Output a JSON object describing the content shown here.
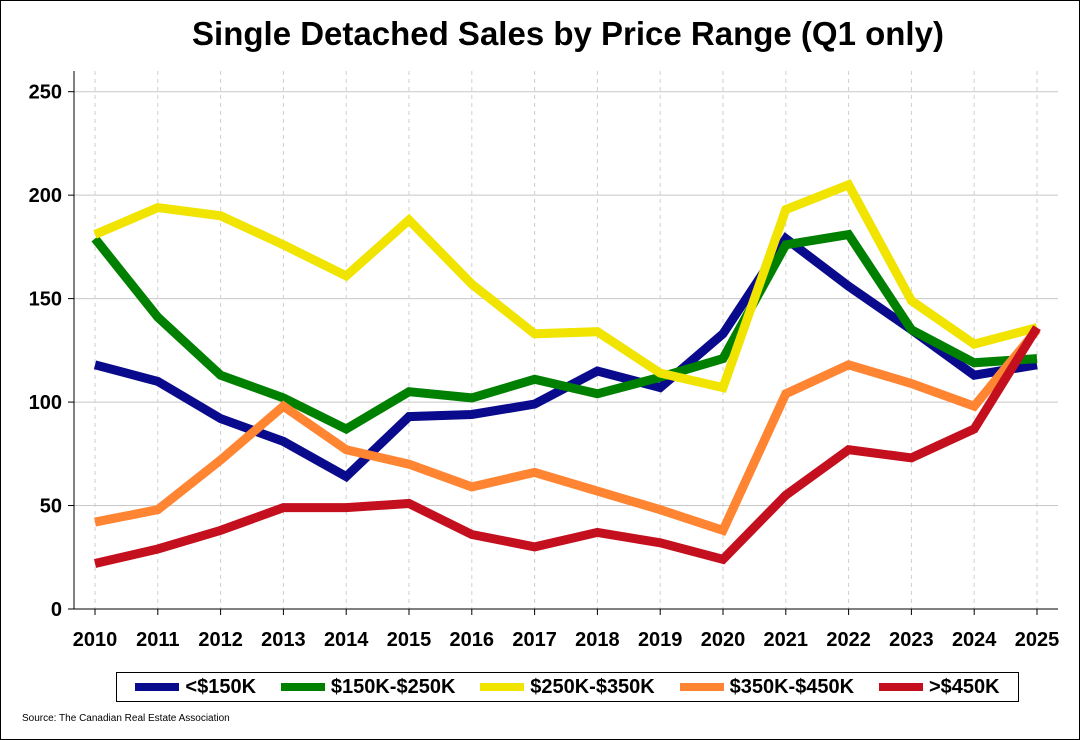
{
  "chart_data": {
    "type": "line",
    "title": "Single Detached Sales by Price Range (Q1 only)",
    "xlabel": "",
    "ylabel": "",
    "ylim": [
      0,
      260
    ],
    "yticks": [
      0,
      50,
      100,
      150,
      200,
      250
    ],
    "x": [
      "2010",
      "2011",
      "2012",
      "2013",
      "2014",
      "2015",
      "2016",
      "2017",
      "2018",
      "2019",
      "2020",
      "2021",
      "2022",
      "2023",
      "2024",
      "2025"
    ],
    "grid": "on",
    "legend_position": "bottom",
    "series": [
      {
        "name": "<$150K",
        "color": "#0a0a8c",
        "values": [
          118,
          110,
          92,
          81,
          64,
          93,
          94,
          99,
          115,
          107,
          133,
          179,
          156,
          135,
          113,
          118
        ]
      },
      {
        "name": "$150K-$250K",
        "color": "#008000",
        "values": [
          179,
          141,
          113,
          102,
          87,
          105,
          102,
          111,
          104,
          112,
          121,
          176,
          181,
          135,
          119,
          121
        ]
      },
      {
        "name": "$250K-$350K",
        "color": "#f0e400",
        "values": [
          181,
          194,
          190,
          176,
          161,
          188,
          157,
          133,
          134,
          114,
          107,
          193,
          205,
          149,
          128,
          136
        ]
      },
      {
        "name": "$350K-$450K",
        "color": "#ff8533",
        "values": [
          42,
          48,
          72,
          98,
          77,
          70,
          59,
          66,
          57,
          48,
          38,
          104,
          118,
          109,
          98,
          135
        ]
      },
      {
        "name": ">$450K",
        "color": "#c40f1e",
        "values": [
          22,
          29,
          38,
          49,
          49,
          51,
          36,
          30,
          37,
          32,
          24,
          55,
          77,
          73,
          87,
          136
        ]
      }
    ]
  },
  "source_note": "Source: The Canadian Real Estate Association"
}
